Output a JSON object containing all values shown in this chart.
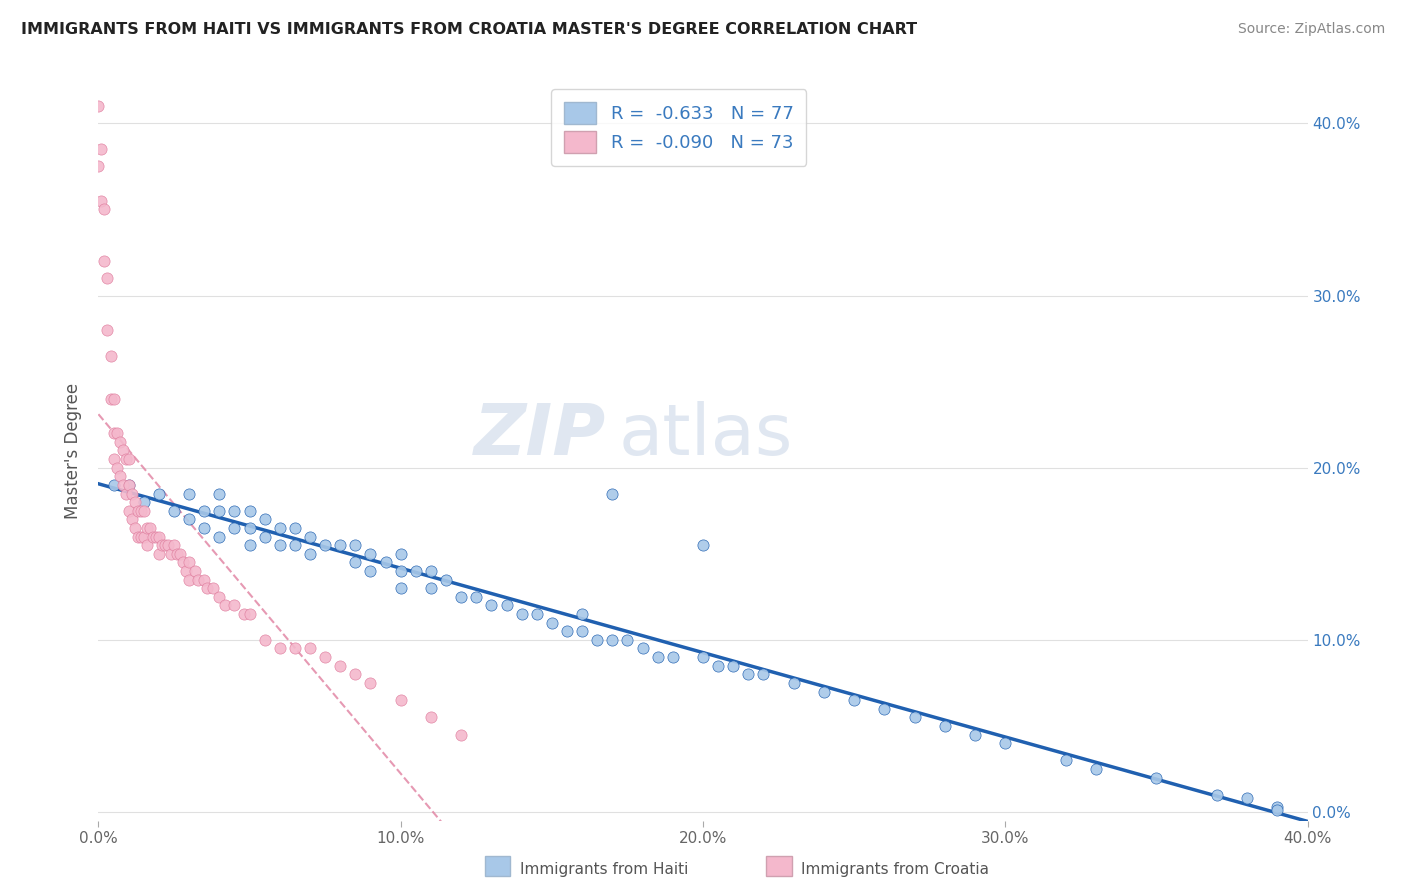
{
  "title": "IMMIGRANTS FROM HAITI VS IMMIGRANTS FROM CROATIA MASTER'S DEGREE CORRELATION CHART",
  "source": "Source: ZipAtlas.com",
  "ylabel": "Master's Degree",
  "watermark_zip": "ZIP",
  "watermark_atlas": "atlas",
  "legend_r1_val": "-0.633",
  "legend_n1_val": "77",
  "legend_r2_val": "-0.090",
  "legend_n2_val": "73",
  "color_haiti": "#a8c8e8",
  "color_croatia": "#f4b8cc",
  "color_haiti_line": "#2060b0",
  "color_croatia_line": "#e080a0",
  "color_text_blue": "#3a7abf",
  "xlim": [
    0.0,
    0.4
  ],
  "ylim": [
    -0.005,
    0.425
  ],
  "yticks": [
    0.0,
    0.1,
    0.2,
    0.3,
    0.4
  ],
  "ytick_labels": [
    "0.0%",
    "10.0%",
    "20.0%",
    "30.0%",
    "40.0%"
  ],
  "xticks": [
    0.0,
    0.1,
    0.2,
    0.3,
    0.4
  ],
  "xtick_labels": [
    "0.0%",
    "10.0%",
    "20.0%",
    "30.0%",
    "40.0%"
  ],
  "haiti_x": [
    0.005,
    0.01,
    0.015,
    0.02,
    0.025,
    0.03,
    0.03,
    0.035,
    0.035,
    0.04,
    0.04,
    0.04,
    0.045,
    0.045,
    0.05,
    0.05,
    0.05,
    0.055,
    0.055,
    0.06,
    0.06,
    0.065,
    0.065,
    0.07,
    0.07,
    0.075,
    0.08,
    0.085,
    0.085,
    0.09,
    0.09,
    0.095,
    0.1,
    0.1,
    0.1,
    0.105,
    0.11,
    0.11,
    0.115,
    0.12,
    0.125,
    0.13,
    0.135,
    0.14,
    0.145,
    0.15,
    0.155,
    0.16,
    0.16,
    0.165,
    0.17,
    0.175,
    0.18,
    0.185,
    0.19,
    0.2,
    0.205,
    0.21,
    0.215,
    0.22,
    0.23,
    0.24,
    0.25,
    0.26,
    0.27,
    0.28,
    0.29,
    0.3,
    0.32,
    0.33,
    0.35,
    0.37,
    0.38,
    0.39,
    0.39,
    0.2,
    0.17
  ],
  "haiti_y": [
    0.19,
    0.19,
    0.18,
    0.185,
    0.175,
    0.185,
    0.17,
    0.175,
    0.165,
    0.185,
    0.175,
    0.16,
    0.175,
    0.165,
    0.175,
    0.165,
    0.155,
    0.17,
    0.16,
    0.165,
    0.155,
    0.165,
    0.155,
    0.16,
    0.15,
    0.155,
    0.155,
    0.155,
    0.145,
    0.15,
    0.14,
    0.145,
    0.15,
    0.14,
    0.13,
    0.14,
    0.14,
    0.13,
    0.135,
    0.125,
    0.125,
    0.12,
    0.12,
    0.115,
    0.115,
    0.11,
    0.105,
    0.115,
    0.105,
    0.1,
    0.1,
    0.1,
    0.095,
    0.09,
    0.09,
    0.09,
    0.085,
    0.085,
    0.08,
    0.08,
    0.075,
    0.07,
    0.065,
    0.06,
    0.055,
    0.05,
    0.045,
    0.04,
    0.03,
    0.025,
    0.02,
    0.01,
    0.008,
    0.003,
    0.001,
    0.155,
    0.185
  ],
  "croatia_x": [
    0.0,
    0.0,
    0.001,
    0.001,
    0.002,
    0.002,
    0.003,
    0.003,
    0.004,
    0.004,
    0.005,
    0.005,
    0.005,
    0.006,
    0.006,
    0.007,
    0.007,
    0.008,
    0.008,
    0.009,
    0.009,
    0.01,
    0.01,
    0.01,
    0.011,
    0.011,
    0.012,
    0.012,
    0.013,
    0.013,
    0.014,
    0.014,
    0.015,
    0.015,
    0.016,
    0.016,
    0.017,
    0.018,
    0.019,
    0.02,
    0.02,
    0.021,
    0.022,
    0.023,
    0.024,
    0.025,
    0.026,
    0.027,
    0.028,
    0.029,
    0.03,
    0.03,
    0.032,
    0.033,
    0.035,
    0.036,
    0.038,
    0.04,
    0.042,
    0.045,
    0.048,
    0.05,
    0.055,
    0.06,
    0.065,
    0.07,
    0.075,
    0.08,
    0.085,
    0.09,
    0.1,
    0.11,
    0.12
  ],
  "croatia_y": [
    0.41,
    0.375,
    0.385,
    0.355,
    0.35,
    0.32,
    0.31,
    0.28,
    0.265,
    0.24,
    0.24,
    0.22,
    0.205,
    0.22,
    0.2,
    0.215,
    0.195,
    0.21,
    0.19,
    0.205,
    0.185,
    0.205,
    0.19,
    0.175,
    0.185,
    0.17,
    0.18,
    0.165,
    0.175,
    0.16,
    0.175,
    0.16,
    0.175,
    0.16,
    0.165,
    0.155,
    0.165,
    0.16,
    0.16,
    0.16,
    0.15,
    0.155,
    0.155,
    0.155,
    0.15,
    0.155,
    0.15,
    0.15,
    0.145,
    0.14,
    0.145,
    0.135,
    0.14,
    0.135,
    0.135,
    0.13,
    0.13,
    0.125,
    0.12,
    0.12,
    0.115,
    0.115,
    0.1,
    0.095,
    0.095,
    0.095,
    0.09,
    0.085,
    0.08,
    0.075,
    0.065,
    0.055,
    0.045
  ],
  "background_color": "#ffffff",
  "grid_color": "#e0e0e0"
}
